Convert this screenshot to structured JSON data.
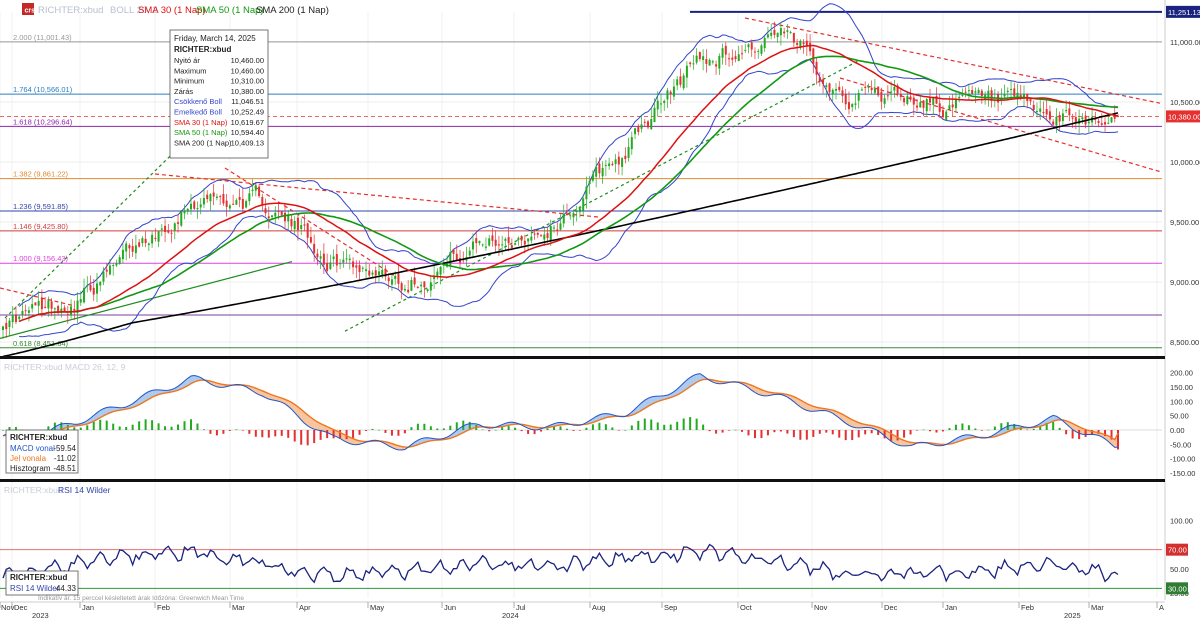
{
  "header": {
    "instrument": "RICHTER:xbud",
    "boll_label": "BOLL 20, 2",
    "sma30_label": "SMA 30 (1 Nap)",
    "sma50_label": "SMA 50 (1 Nap)",
    "sma200_label": "SMA 200 (1 Nap)"
  },
  "colors": {
    "up": "#22aa22",
    "down": "#e53030",
    "boll": "#3344cc",
    "sma30": "#dd1111",
    "sma50": "#119911",
    "sma200": "#000000",
    "macd": "#2255cc",
    "signal": "#ee7722",
    "rsi": "#1a237e",
    "resistance": "#1a237e"
  },
  "tooltip": {
    "date": "Friday, March 14, 2025",
    "title": "RICHTER:xbud",
    "rows": [
      {
        "label": "Nyitó ár",
        "value": "10,460.00"
      },
      {
        "label": "Maximum",
        "value": "10,460.00"
      },
      {
        "label": "Minimum",
        "value": "10,310.00"
      },
      {
        "label": "Zárás",
        "value": "10,380.00"
      },
      {
        "label": "Csökkenő Boll",
        "value": "11,046.51"
      },
      {
        "label": "Emelkedő Boll",
        "value": "10,252.49"
      },
      {
        "label": "SMA 30 (1 Nap)",
        "value": "10,619.67"
      },
      {
        "label": "SMA 50 (1 Nap)",
        "value": "10,594.40"
      },
      {
        "label": "SMA 200 (1 Nap)",
        "value": "10,409.13"
      }
    ]
  },
  "macd_panel": {
    "header": "RICHTER:xbud  MACD 26, 12, 9",
    "box_title": "RICHTER:xbud",
    "rows": [
      {
        "label": "MACD vonal",
        "value": "-59.54"
      },
      {
        "label": "Jel vonala",
        "value": "-11.02"
      },
      {
        "label": "Hisztogram",
        "value": "-48.51"
      }
    ]
  },
  "rsi_panel": {
    "header": "RICHTER:xbud",
    "indicator": "RSI 14 Wilder",
    "box_title": "RICHTER:xbud",
    "value_label": "RSI 14 Wilder",
    "value": "44.33"
  },
  "footer_note": "Indikatív ár. 15 perccel késleltetett árak   Időzóna: Greenwich Mean Time",
  "chart_data": [
    {
      "type": "candlestick",
      "panel": "price",
      "ylim": [
        8400,
        11300
      ],
      "y_ticks": [
        8500,
        9000,
        9500,
        10000,
        10500,
        11000
      ],
      "y_tick_labels": [
        "8,500.00",
        "9,000.00",
        "9,500.00",
        "10,000.00",
        "10,500.00",
        "11,000.00"
      ],
      "x_labels": [
        "Nov",
        "Dec",
        "Jan",
        "Feb",
        "Mar",
        "Apr",
        "May",
        "Jun",
        "Jul",
        "Aug",
        "Sep",
        "Oct",
        "Nov",
        "Dec",
        "Jan",
        "Feb",
        "Mar",
        "A"
      ],
      "year_labels": [
        "2023",
        "2024",
        "2025"
      ],
      "close_anchor_months": [
        "2023-11",
        "2023-12",
        "2024-01",
        "2024-02",
        "2024-03",
        "2024-04",
        "2024-05",
        "2024-06",
        "2024-07",
        "2024-08",
        "2024-09",
        "2024-10",
        "2024-11",
        "2024-12",
        "2025-01",
        "2025-02",
        "2025-03"
      ],
      "close_anchor_values": [
        8700,
        8750,
        9100,
        9750,
        9650,
        9200,
        9050,
        9300,
        9500,
        10100,
        10850,
        11050,
        10600,
        10550,
        10450,
        10300,
        10380
      ],
      "last_close": 10380,
      "last_close_label": "10,380.00",
      "resistance": 11251.13,
      "resistance_label": "11,251.13",
      "fib_levels": [
        {
          "label": "2.000 (11,001.43)",
          "value": 11001.43
        },
        {
          "label": "1.764 (10,566.01)",
          "value": 10566.01
        },
        {
          "label": "1.618 (10,296.64)",
          "value": 10296.64
        },
        {
          "label": "1.382 (9,861.22)",
          "value": 9861.22
        },
        {
          "label": "1.236 (9,591.85)",
          "value": 9591.85
        },
        {
          "label": "1.146 (9,425.80)",
          "value": 9425.8
        },
        {
          "label": "1.000 (9,156.43)",
          "value": 9156.43
        },
        {
          "label": "0.618 (8,451.64)",
          "value": 8451.64
        }
      ],
      "extra_levels": [
        8725
      ],
      "series": [
        {
          "name": "SMA 30 (1 Nap)",
          "last": 10619.67
        },
        {
          "name": "SMA 50 (1 Nap)",
          "last": 10594.4
        },
        {
          "name": "SMA 200 (1 Nap)",
          "last": 10409.13
        },
        {
          "name": "Csökkenő Boll",
          "last": 11046.51
        },
        {
          "name": "Emelkedő Boll",
          "last": 10252.49
        }
      ]
    },
    {
      "type": "bar",
      "panel": "macd",
      "ylim": [
        -175,
        230
      ],
      "y_ticks": [
        200,
        150,
        100,
        50,
        0,
        -50,
        -100,
        -150
      ],
      "y_tick_labels": [
        "200.00",
        "150.00",
        "100.00",
        "50.00",
        "0.00",
        "-50.00",
        "-100.00",
        "-150.00"
      ],
      "anchor_months": [
        "2023-11",
        "2023-12",
        "2024-01",
        "2024-02",
        "2024-03",
        "2024-04",
        "2024-05",
        "2024-06",
        "2024-07",
        "2024-08",
        "2024-09",
        "2024-10",
        "2024-11",
        "2024-12",
        "2025-01",
        "2025-02",
        "2025-03"
      ],
      "macd_anchor_values": [
        -20,
        -10,
        80,
        180,
        130,
        -30,
        -60,
        20,
        10,
        60,
        190,
        120,
        30,
        -60,
        -20,
        40,
        -59.54
      ],
      "series": [
        {
          "name": "MACD vonal",
          "last": -59.54
        },
        {
          "name": "Jel vonala",
          "last": -11.02
        },
        {
          "name": "Hisztogram",
          "last": -48.51
        }
      ]
    },
    {
      "type": "line",
      "panel": "rsi",
      "ylim": [
        0,
        100
      ],
      "y_ticks": [
        100,
        75,
        50,
        25
      ],
      "y_tick_labels": [
        "100.00",
        "",
        "50.00",
        "25.00"
      ],
      "overbought": 70,
      "overbought_label": "70.00",
      "oversold": 30,
      "oversold_label": "30.00",
      "anchor_months": [
        "2023-11",
        "2023-12",
        "2024-01",
        "2024-02",
        "2024-03",
        "2024-04",
        "2024-05",
        "2024-06",
        "2024-07",
        "2024-08",
        "2024-09",
        "2024-10",
        "2024-11",
        "2024-12",
        "2025-01",
        "2025-02",
        "2025-03"
      ],
      "rsi_anchor_values": [
        45,
        50,
        62,
        68,
        55,
        42,
        48,
        55,
        52,
        62,
        68,
        58,
        44,
        45,
        48,
        55,
        44.33
      ],
      "series": [
        {
          "name": "RSI 14 Wilder",
          "last": 44.33
        }
      ]
    }
  ]
}
